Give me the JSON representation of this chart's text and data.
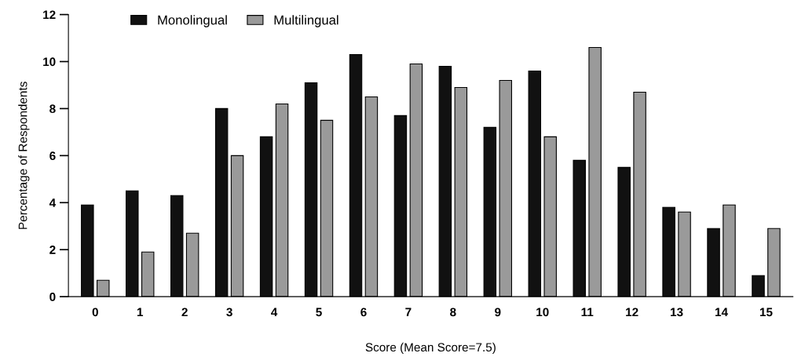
{
  "chart_data": {
    "type": "bar",
    "xlabel": "Score (Mean Score=7.5)",
    "ylabel": "Percentage of Respondents",
    "categories": [
      "0",
      "1",
      "2",
      "3",
      "4",
      "5",
      "6",
      "7",
      "8",
      "9",
      "10",
      "11",
      "12",
      "13",
      "14",
      "15"
    ],
    "series": [
      {
        "name": "Monolingual",
        "color": "#111111",
        "values": [
          3.9,
          4.5,
          4.3,
          8.0,
          6.8,
          9.1,
          10.3,
          7.7,
          9.8,
          7.2,
          9.6,
          5.8,
          5.5,
          3.8,
          2.9,
          0.9
        ]
      },
      {
        "name": "Multilingual",
        "color": "#9a9a9a",
        "values": [
          0.7,
          1.9,
          2.7,
          6.0,
          8.2,
          7.5,
          8.5,
          9.9,
          8.9,
          9.2,
          6.8,
          10.6,
          8.7,
          3.6,
          3.9,
          2.9
        ]
      }
    ],
    "ylim": [
      0,
      12
    ],
    "yticks": [
      0,
      2,
      4,
      6,
      8,
      10,
      12
    ],
    "grid": false,
    "legend": "top left"
  }
}
